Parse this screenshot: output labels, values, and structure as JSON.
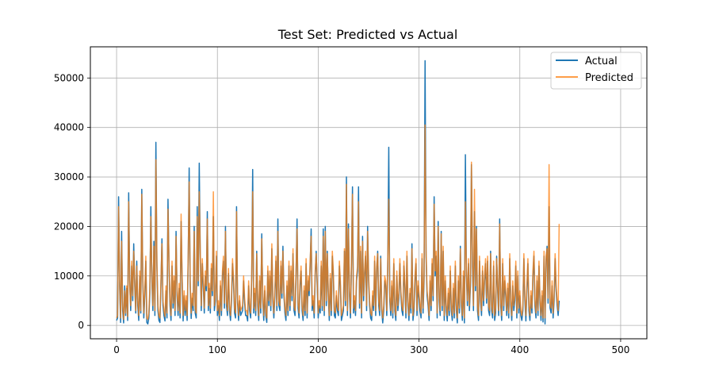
{
  "chart_data": {
    "type": "line",
    "title": "Test Set: Predicted vs Actual",
    "xlabel": "",
    "ylabel": "",
    "xlim": [
      -26,
      526
    ],
    "ylim": [
      -2700,
      56300
    ],
    "x_ticks": [
      0,
      100,
      200,
      300,
      400,
      500
    ],
    "y_ticks": [
      0,
      10000,
      20000,
      30000,
      40000,
      50000
    ],
    "grid": true,
    "legend_position": "top-right",
    "n_points": 500,
    "series": [
      {
        "name": "Actual",
        "color": "#1f77b4",
        "opacity": 1,
        "values": [
          1000,
          1500,
          26000,
          8000,
          600,
          19000,
          3000,
          500,
          8000,
          2000,
          7500,
          1000,
          26800,
          9000,
          3000,
          12000,
          5000,
          16500,
          8000,
          2500,
          13000,
          4000,
          1000,
          10000,
          2500,
          27500,
          9000,
          1500,
          6000,
          13000,
          600,
          300,
          1500,
          6500,
          24000,
          9000,
          3000,
          17000,
          2000,
          37000,
          12000,
          3000,
          1000,
          600,
          8000,
          17500,
          4000,
          2000,
          900,
          7000,
          1500,
          25500,
          12000,
          4000,
          1000,
          12000,
          3500,
          9000,
          2000,
          19000,
          6000,
          2000,
          7500,
          1500,
          21000,
          9000,
          900,
          6000,
          2000,
          5000,
          1000,
          12500,
          31800,
          8000,
          1400,
          5500,
          3000,
          20000,
          2500,
          1500,
          24000,
          8000,
          32800,
          14000,
          3000,
          12500,
          8000,
          2500,
          10000,
          7000,
          23000,
          3000,
          7500,
          2500,
          11500,
          6000,
          22000,
          3000,
          5000,
          14000,
          2000,
          4000,
          1000,
          8000,
          2000,
          10000,
          13000,
          3500,
          20000,
          4000,
          2000,
          10500,
          3000,
          1000,
          5000,
          12500,
          8500,
          2500,
          1500,
          24000,
          4500,
          1000,
          5000,
          2000,
          2500,
          3000,
          9000,
          4500,
          2000,
          2000,
          900,
          8000,
          3000,
          1500,
          9000,
          31500,
          2500,
          6500,
          2000,
          15000,
          4000,
          1000,
          9000,
          2500,
          18500,
          5000,
          1000,
          7000,
          2000,
          600,
          11000,
          4000,
          10000,
          3000,
          15500,
          5000,
          1500,
          6000,
          13000,
          3000,
          21500,
          4000,
          3000,
          12000,
          5500,
          16000,
          6000,
          2500,
          1000,
          8000,
          2000,
          12000,
          3000,
          11000,
          5000,
          14500,
          3000,
          2000,
          10000,
          21500,
          3500,
          1500,
          8000,
          11000,
          3000,
          1000,
          7000,
          2000,
          12500,
          1500,
          9000,
          6000,
          12000,
          19500,
          3000,
          5000,
          1500,
          10000,
          15000,
          8000,
          1500,
          4000,
          2500,
          12000,
          3000,
          19500,
          2000,
          20000,
          4000,
          15000,
          6000,
          1000,
          9500,
          2000,
          14000,
          10000,
          2000,
          1500,
          6000,
          3000,
          2000,
          12000,
          8000,
          1000,
          2000,
          3000,
          15000,
          4000,
          30000,
          2000,
          20500,
          6000,
          1500,
          12000,
          28000,
          2500,
          5000,
          2000,
          9000,
          11000,
          28000,
          3500,
          15000,
          1500,
          18000,
          5000,
          10000,
          14000,
          3000,
          20000,
          9000,
          4000,
          1500,
          1000,
          6000,
          3000,
          13000,
          2000,
          11000,
          15000,
          4000,
          2000,
          14000,
          3000,
          500,
          3000,
          9000,
          8000,
          2000,
          12000,
          36000,
          5000,
          2000,
          8000,
          1500,
          12500,
          3000,
          1000,
          10000,
          3000,
          5500,
          12500,
          6000,
          3000,
          2000,
          12000,
          7500,
          1500,
          14000,
          4000,
          1000,
          6500,
          2500,
          16500,
          1000,
          3000,
          9000,
          12500,
          2000,
          8000,
          5500,
          3000,
          1500,
          13500,
          2500,
          9000,
          53500,
          14000,
          6000,
          4000,
          1000,
          9000,
          3000,
          12500,
          5000,
          26000,
          10000,
          14000,
          1500,
          21000,
          5000,
          2000,
          19000,
          3000,
          15000,
          1000,
          9000,
          3000,
          900,
          6500,
          2000,
          11000,
          3000,
          1000,
          7500,
          1500,
          12000,
          3000,
          500,
          9000,
          2500,
          16000,
          4000,
          1000,
          10000,
          500,
          34500,
          10000,
          4000,
          12500,
          3000,
          8000,
          32500,
          12000,
          3000,
          23000,
          7000,
          20000,
          3000,
          1000,
          13000,
          5000,
          2000,
          11000,
          4000,
          9000,
          12500,
          4500,
          13000,
          3000,
          2000,
          15000,
          3000,
          1500,
          12000,
          1000,
          2500,
          14000,
          7000,
          2000,
          21500,
          4000,
          1000,
          12500,
          3000,
          9000,
          6000,
          2000,
          7500,
          1500,
          13500,
          4000,
          1000,
          8000,
          3000,
          5000,
          12000,
          1500,
          10000,
          2500,
          6000,
          2000,
          1000,
          3000,
          13500,
          5000,
          900,
          7000,
          12500,
          3000,
          1000,
          6000,
          2500,
          10000,
          14000,
          4000,
          1500,
          9000,
          2000,
          12000,
          4500,
          1000,
          6000,
          700,
          14000,
          300,
          13000,
          16000,
          4500,
          24000,
          3500,
          2500,
          8000,
          1500,
          5000,
          13500,
          7000,
          4000,
          2000,
          5000
        ]
      },
      {
        "name": "Predicted",
        "color": "#ff7f0e",
        "opacity": 0.75,
        "values": [
          1500,
          2000,
          24000,
          9000,
          1500,
          17000,
          4000,
          1200,
          7000,
          2500,
          8000,
          1800,
          25000,
          8000,
          4000,
          13000,
          6000,
          15000,
          9000,
          3000,
          12000,
          5000,
          2000,
          11000,
          3000,
          26500,
          10000,
          2500,
          7000,
          14000,
          1500,
          1200,
          2500,
          7500,
          22000,
          10000,
          4000,
          16000,
          3000,
          33500,
          13000,
          4000,
          2000,
          1500,
          9000,
          16500,
          5000,
          3000,
          1800,
          8000,
          2500,
          23500,
          13000,
          5000,
          2000,
          13000,
          4500,
          10000,
          3000,
          18000,
          7000,
          3000,
          8500,
          2500,
          22500,
          10000,
          2000,
          7000,
          3000,
          6000,
          2000,
          13500,
          29000,
          9000,
          2500,
          6500,
          4000,
          19000,
          3500,
          2500,
          22000,
          9000,
          27000,
          15000,
          4000,
          13500,
          9000,
          3500,
          11000,
          8000,
          21500,
          4000,
          8500,
          3500,
          12500,
          7000,
          27000,
          4000,
          6000,
          15000,
          3000,
          5000,
          2000,
          9000,
          3000,
          11000,
          14000,
          4500,
          19000,
          5000,
          3000,
          11500,
          4000,
          2000,
          6000,
          13500,
          9500,
          3500,
          2500,
          23000,
          5500,
          2000,
          6000,
          3000,
          3500,
          4000,
          10000,
          5500,
          3000,
          3000,
          2000,
          9000,
          4000,
          2500,
          10000,
          27000,
          3500,
          7500,
          3000,
          14500,
          5000,
          2000,
          10000,
          3500,
          17500,
          6000,
          2000,
          8000,
          3000,
          1500,
          12000,
          5000,
          11000,
          4000,
          16500,
          6000,
          2500,
          7000,
          14000,
          4000,
          19000,
          5000,
          4000,
          13000,
          6500,
          15000,
          7000,
          3500,
          2000,
          9000,
          3000,
          13000,
          4000,
          12000,
          6000,
          15500,
          4000,
          3000,
          11000,
          19500,
          4500,
          2500,
          9000,
          12000,
          4000,
          2000,
          8000,
          3000,
          13500,
          2500,
          10000,
          7000,
          13000,
          18000,
          4000,
          6000,
          2500,
          11000,
          14500,
          9000,
          2500,
          5000,
          3500,
          13000,
          4000,
          18000,
          3000,
          19000,
          5000,
          14500,
          7000,
          2000,
          10500,
          3000,
          15000,
          11000,
          3000,
          2500,
          7000,
          4000,
          3000,
          13000,
          9000,
          2000,
          3000,
          4000,
          15500,
          5000,
          28500,
          3000,
          19500,
          7000,
          2500,
          13000,
          26500,
          3500,
          6000,
          3000,
          10000,
          12000,
          25000,
          4500,
          16000,
          2500,
          17000,
          6000,
          11000,
          15000,
          4000,
          19000,
          10000,
          5000,
          2500,
          2000,
          7000,
          4000,
          14000,
          3000,
          12000,
          14500,
          5000,
          3000,
          13500,
          4000,
          1500,
          4000,
          10000,
          9000,
          3000,
          13000,
          25500,
          6000,
          3000,
          9000,
          2500,
          13500,
          4000,
          2000,
          11000,
          4000,
          6500,
          13500,
          7000,
          4000,
          3000,
          13000,
          8500,
          2500,
          15000,
          5000,
          2000,
          7500,
          3500,
          15500,
          2000,
          4000,
          10000,
          13500,
          3000,
          9000,
          6500,
          4000,
          2500,
          14500,
          3500,
          10000,
          40500,
          15000,
          7000,
          5000,
          2000,
          10000,
          4000,
          13500,
          6000,
          24500,
          11000,
          15000,
          2500,
          20000,
          6000,
          3000,
          18500,
          4000,
          16000,
          2000,
          10000,
          4000,
          2000,
          7500,
          3000,
          12000,
          4000,
          2000,
          8500,
          2500,
          13000,
          4000,
          1500,
          10000,
          3500,
          15500,
          5000,
          2000,
          11000,
          1500,
          25000,
          11000,
          5000,
          13500,
          4000,
          9000,
          33000,
          13000,
          4000,
          27500,
          8000,
          19500,
          4000,
          2000,
          14000,
          6000,
          3000,
          12000,
          5000,
          10000,
          13500,
          5500,
          14000,
          4000,
          3000,
          14500,
          4000,
          2500,
          13000,
          2000,
          3500,
          13500,
          8000,
          3000,
          20500,
          5000,
          2000,
          13500,
          4000,
          10000,
          7000,
          3000,
          8500,
          2500,
          14500,
          5000,
          2000,
          9000,
          4000,
          6000,
          13000,
          2500,
          11000,
          3500,
          7000,
          3000,
          2000,
          4000,
          14500,
          6000,
          2000,
          8000,
          13500,
          4000,
          2000,
          7000,
          3500,
          11000,
          15000,
          5000,
          2500,
          10000,
          3000,
          13000,
          5500,
          2000,
          7000,
          1500,
          15000,
          1500,
          14000,
          15500,
          5500,
          32500,
          4500,
          3500,
          9000,
          2500,
          6000,
          14500,
          8000,
          5000,
          3000,
          20500
        ]
      }
    ]
  }
}
